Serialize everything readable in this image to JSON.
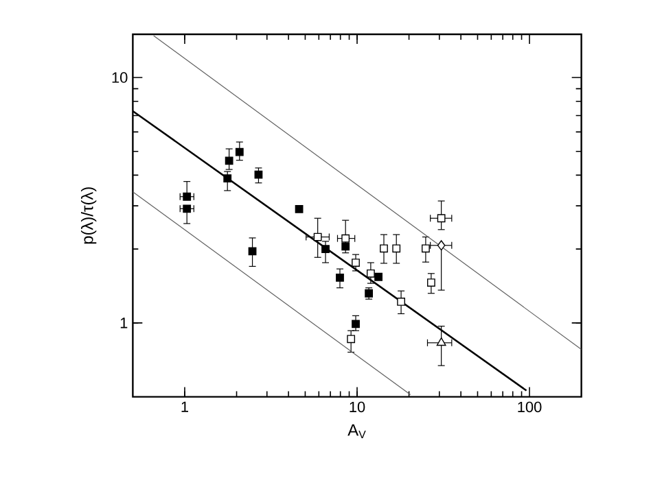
{
  "chart_data": {
    "type": "scatter",
    "xlabel": "A$_{V}$",
    "ylabel": "p(λ)/τ(λ)",
    "log": "xy",
    "grid": false,
    "xlim": [
      0.5,
      200
    ],
    "ylim": [
      0.5,
      15
    ],
    "xticks": [
      1,
      10,
      100
    ],
    "yticks": [
      1,
      10
    ],
    "series": [
      {
        "marker": "square",
        "color": "#000000",
        "x": [
          1.03,
          1.03,
          1.77,
          1.81,
          2.08,
          2.68,
          2.47,
          4.61,
          6.56,
          8.57,
          7.95,
          11.7,
          13.3,
          9.82
        ],
        "values": [
          3.27,
          2.92,
          3.88,
          4.58,
          4.97,
          4.02,
          1.96,
          2.91,
          2.0,
          2.05,
          1.53,
          1.32,
          1.54,
          0.99
        ],
        "errors": [
          [
            3.27,
            3.77
          ],
          [
            2.54,
            2.92
          ],
          [
            3.46,
            4.14
          ],
          [
            4.22,
            5.12
          ],
          [
            4.6,
            5.46
          ],
          [
            3.72,
            4.28
          ],
          [
            1.7,
            2.22
          ],
          null,
          [
            1.76,
            2.15
          ],
          null,
          [
            1.39,
            1.66
          ],
          [
            1.25,
            1.39
          ],
          null,
          [
            0.93,
            1.07
          ]
        ],
        "xerrors": [
          [
            0.94,
            1.13
          ],
          [
            0.94,
            1.13
          ],
          null,
          null,
          null,
          null,
          null,
          null,
          null,
          null,
          null,
          null,
          null,
          null
        ]
      },
      {
        "marker": "square",
        "color": "#ffffff",
        "x": [
          5.91,
          8.57,
          9.82,
          12.0,
          14.3,
          16.9,
          18.0,
          25.0,
          26.9,
          30.8,
          9.22
        ],
        "values": [
          2.24,
          2.21,
          1.76,
          1.59,
          2.01,
          2.01,
          1.22,
          2.01,
          1.46,
          2.67,
          0.86
        ],
        "errors": [
          [
            1.85,
            2.67
          ],
          [
            1.93,
            2.62
          ],
          [
            1.63,
            1.9
          ],
          [
            1.45,
            1.76
          ],
          [
            1.75,
            2.29
          ],
          [
            1.75,
            2.29
          ],
          [
            1.09,
            1.35
          ],
          [
            1.77,
            2.24
          ],
          [
            1.32,
            1.59
          ],
          [
            2.4,
            3.14
          ],
          [
            0.76,
            0.93
          ]
        ],
        "xerrors": [
          [
            5.06,
            6.89
          ],
          [
            7.7,
            9.7
          ],
          null,
          null,
          null,
          null,
          null,
          null,
          null,
          [
            26.6,
            35.4
          ],
          null
        ]
      },
      {
        "marker": "diamond",
        "color": "#ffffff",
        "x": [
          30.8
        ],
        "values": [
          2.07
        ],
        "errors": [
          [
            1.36,
            2.07
          ]
        ],
        "xerrors": [
          [
            26.6,
            35.4
          ]
        ]
      },
      {
        "marker": "triangle",
        "color": "#ffffff",
        "x": [
          30.8
        ],
        "values": [
          0.83
        ],
        "errors": [
          [
            0.67,
            0.97
          ]
        ],
        "xerrors": [
          [
            25.6,
            35.4
          ]
        ]
      },
      {
        "type": "line",
        "marker": "none",
        "color": "#000000",
        "x": [
          0.5,
          96
        ],
        "values": [
          7.3,
          0.53
        ]
      },
      {
        "type": "line",
        "marker": "none",
        "color": "#606060",
        "x": [
          0.66,
          200
        ],
        "values": [
          14.8,
          0.78
        ]
      },
      {
        "type": "line",
        "marker": "none",
        "color": "#606060",
        "x": [
          0.5,
          20.4
        ],
        "values": [
          3.42,
          0.51
        ]
      }
    ]
  }
}
